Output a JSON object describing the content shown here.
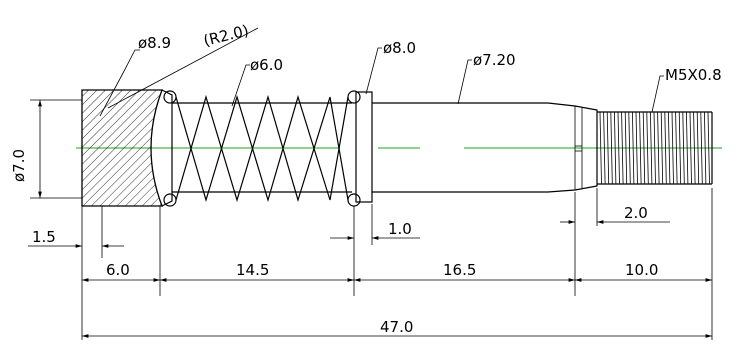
{
  "callouts": {
    "head_diameter": "ø8.9",
    "head_radius": "(R2.0)",
    "spring_diameter": "ø6.0",
    "collar_diameter": "ø8.0",
    "shaft_diameter": "ø7.20",
    "thread_spec": "M5X0.8",
    "height_diameter": "ø7.0"
  },
  "dimensions": {
    "head_chamfer": "1.5",
    "head_length": "6.0",
    "spring_length": "14.5",
    "collar_width": "1.0",
    "shaft_length": "16.5",
    "thread_relief": "2.0",
    "thread_length": "10.0",
    "overall_length": "47.0"
  },
  "colors": {
    "outline": "#000000",
    "centerline": "#19a319"
  }
}
